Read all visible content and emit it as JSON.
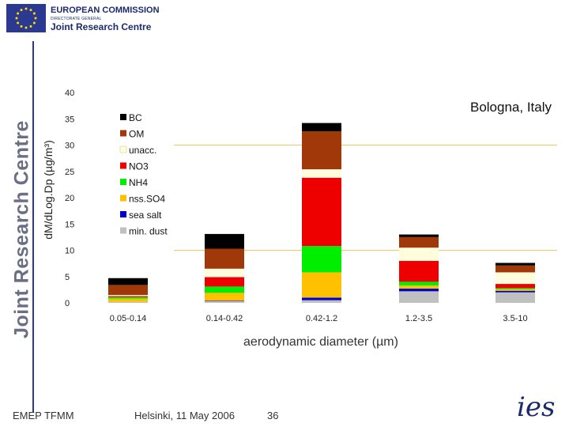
{
  "header": {
    "org_line1": "EUROPEAN COMMISSION",
    "org_line2": "DIRECTORATE GENERAL",
    "org_line3": "Joint Research Centre"
  },
  "side_title": "Joint Research Centre",
  "footer": {
    "left": "EMEP TFMM",
    "middle": "Helsinki, 11 May 2006",
    "page": "36"
  },
  "logo_text": "ies",
  "chart_data": {
    "type": "bar",
    "stacked": true,
    "title": "Bologna, Italy",
    "xlabel": "aerodynamic diameter (µm)",
    "ylabel": "dM/dLog.Dp (µg/m³)",
    "ylim": [
      0,
      40
    ],
    "yticks": [
      0,
      5,
      10,
      15,
      20,
      25,
      30,
      35,
      40
    ],
    "gridlines": [
      10,
      30
    ],
    "categories": [
      "0.05-0.14",
      "0.14-0.42",
      "0.42-1.2",
      "1.2-3.5",
      "3.5-10"
    ],
    "series": [
      {
        "name": "min. dust",
        "color": "#c0c0c0",
        "values": [
          0.2,
          0.3,
          0.5,
          2.2,
          2.0
        ]
      },
      {
        "name": "sea salt",
        "color": "#0000cc",
        "values": [
          0.0,
          0.1,
          0.5,
          0.5,
          0.3
        ]
      },
      {
        "name": "nss.SO4",
        "color": "#ffc000",
        "values": [
          0.6,
          1.5,
          4.8,
          0.6,
          0.3
        ]
      },
      {
        "name": "NH4",
        "color": "#00ee00",
        "values": [
          0.3,
          1.2,
          5.0,
          0.7,
          0.2
        ]
      },
      {
        "name": "NO3",
        "color": "#ee0000",
        "values": [
          0.2,
          1.8,
          13.0,
          4.0,
          0.8
        ]
      },
      {
        "name": "unacc.",
        "color": "#fffddd",
        "values": [
          0.2,
          1.6,
          1.6,
          2.5,
          2.2
        ]
      },
      {
        "name": "OM",
        "color": "#a0380a",
        "values": [
          1.9,
          3.8,
          7.2,
          2.0,
          1.3
        ]
      },
      {
        "name": "BC",
        "color": "#000000",
        "values": [
          1.3,
          2.8,
          1.6,
          0.5,
          0.5
        ]
      }
    ],
    "legend": [
      "BC",
      "OM",
      "unacc.",
      "NO3",
      "NH4",
      "nss.SO4",
      "sea salt",
      "min. dust"
    ],
    "legend_position": "top-left"
  }
}
